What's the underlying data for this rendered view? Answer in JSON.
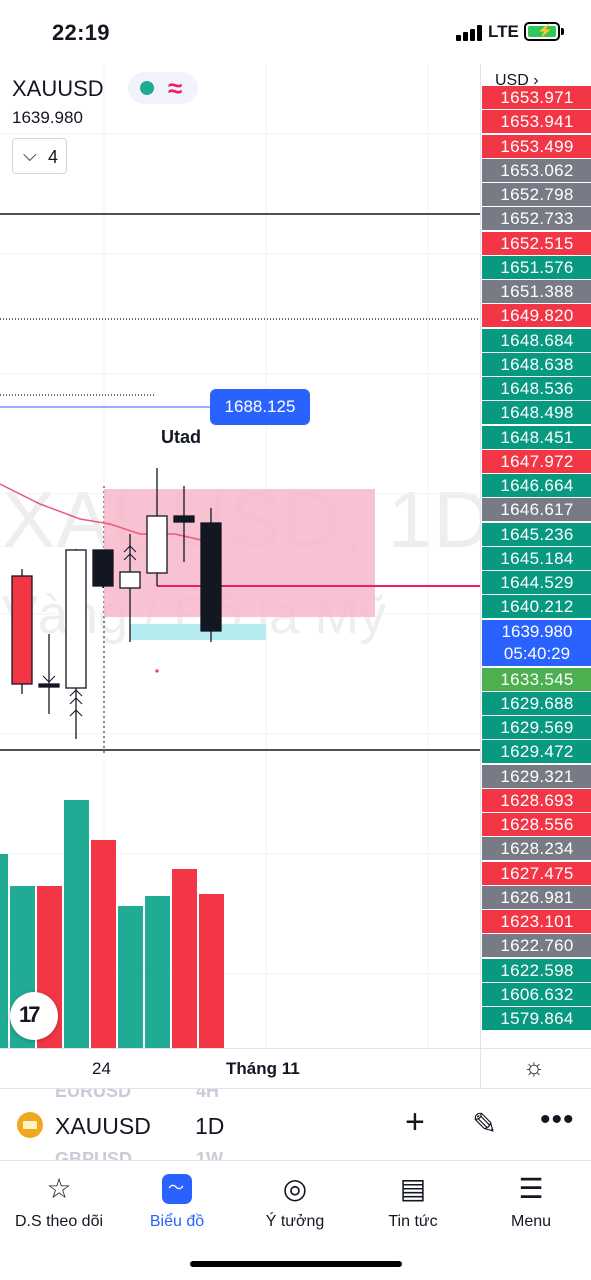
{
  "status_bar": {
    "time": "22:19",
    "network": "LTE"
  },
  "chart": {
    "symbol": "XAUUSD",
    "last_price": "1639.980",
    "indicator_count": "4",
    "watermark_symbol": "XAUUSD, 1D",
    "watermark_desc": "Vàng / Đô la Mỹ",
    "alert_price": "1688.125",
    "annotation": "Utad",
    "colors": {
      "up": "#22ab94",
      "down": "#f23645",
      "accent": "#2962ff",
      "zone": "#f7b7cb"
    }
  },
  "price_scale": {
    "currency": "USD",
    "tags": [
      {
        "value": "1653.971",
        "color": "#f23645"
      },
      {
        "value": "1653.941",
        "color": "#f23645"
      },
      {
        "value": "1653.499",
        "color": "#f23645"
      },
      {
        "value": "1653.062",
        "color": "#787b86"
      },
      {
        "value": "1652.798",
        "color": "#787b86"
      },
      {
        "value": "1652.733",
        "color": "#787b86"
      },
      {
        "value": "1652.515",
        "color": "#f23645"
      },
      {
        "value": "1651.576",
        "color": "#089981"
      },
      {
        "value": "1651.388",
        "color": "#787b86"
      },
      {
        "value": "1649.820",
        "color": "#f23645"
      },
      {
        "value": "1648.684",
        "color": "#089981"
      },
      {
        "value": "1648.638",
        "color": "#089981"
      },
      {
        "value": "1648.536",
        "color": "#089981"
      },
      {
        "value": "1648.498",
        "color": "#089981"
      },
      {
        "value": "1648.451",
        "color": "#089981"
      },
      {
        "value": "1647.972",
        "color": "#f23645"
      },
      {
        "value": "1646.664",
        "color": "#089981"
      },
      {
        "value": "1646.617",
        "color": "#787b86"
      },
      {
        "value": "1645.236",
        "color": "#089981"
      },
      {
        "value": "1645.184",
        "color": "#089981"
      },
      {
        "value": "1644.529",
        "color": "#089981"
      },
      {
        "value": "1640.212",
        "color": "#089981"
      },
      {
        "value": "1633.545",
        "color": "#4caf50"
      },
      {
        "value": "1629.688",
        "color": "#089981"
      },
      {
        "value": "1629.569",
        "color": "#089981"
      },
      {
        "value": "1629.472",
        "color": "#089981"
      },
      {
        "value": "1629.321",
        "color": "#787b86"
      },
      {
        "value": "1628.693",
        "color": "#f23645"
      },
      {
        "value": "1628.556",
        "color": "#f23645"
      },
      {
        "value": "1628.234",
        "color": "#787b86"
      },
      {
        "value": "1627.475",
        "color": "#f23645"
      },
      {
        "value": "1626.981",
        "color": "#787b86"
      },
      {
        "value": "1623.101",
        "color": "#f23645"
      },
      {
        "value": "1622.760",
        "color": "#787b86"
      },
      {
        "value": "1622.598",
        "color": "#089981"
      },
      {
        "value": "1606.632",
        "color": "#089981"
      },
      {
        "value": "1579.864",
        "color": "#089981"
      }
    ],
    "current_price": "1639.980",
    "countdown": "05:40:29"
  },
  "time_axis": {
    "label_24": "24",
    "label_month": "Tháng 11"
  },
  "toolbar": {
    "symbol": "XAUUSD",
    "interval": "1D",
    "ghost_above_symbol": "EURUSD",
    "ghost_above_interval": "4H",
    "ghost_below_symbol": "GBPUSD",
    "ghost_below_interval": "1W"
  },
  "nav": {
    "items": [
      {
        "label": "D.S theo dõi",
        "icon": "star-icon"
      },
      {
        "label": "Biểu đồ",
        "icon": "chart-icon"
      },
      {
        "label": "Ý tưởng",
        "icon": "lightbulb-icon"
      },
      {
        "label": "Tin tức",
        "icon": "news-icon"
      },
      {
        "label": "Menu",
        "icon": "menu-icon"
      }
    ]
  }
}
